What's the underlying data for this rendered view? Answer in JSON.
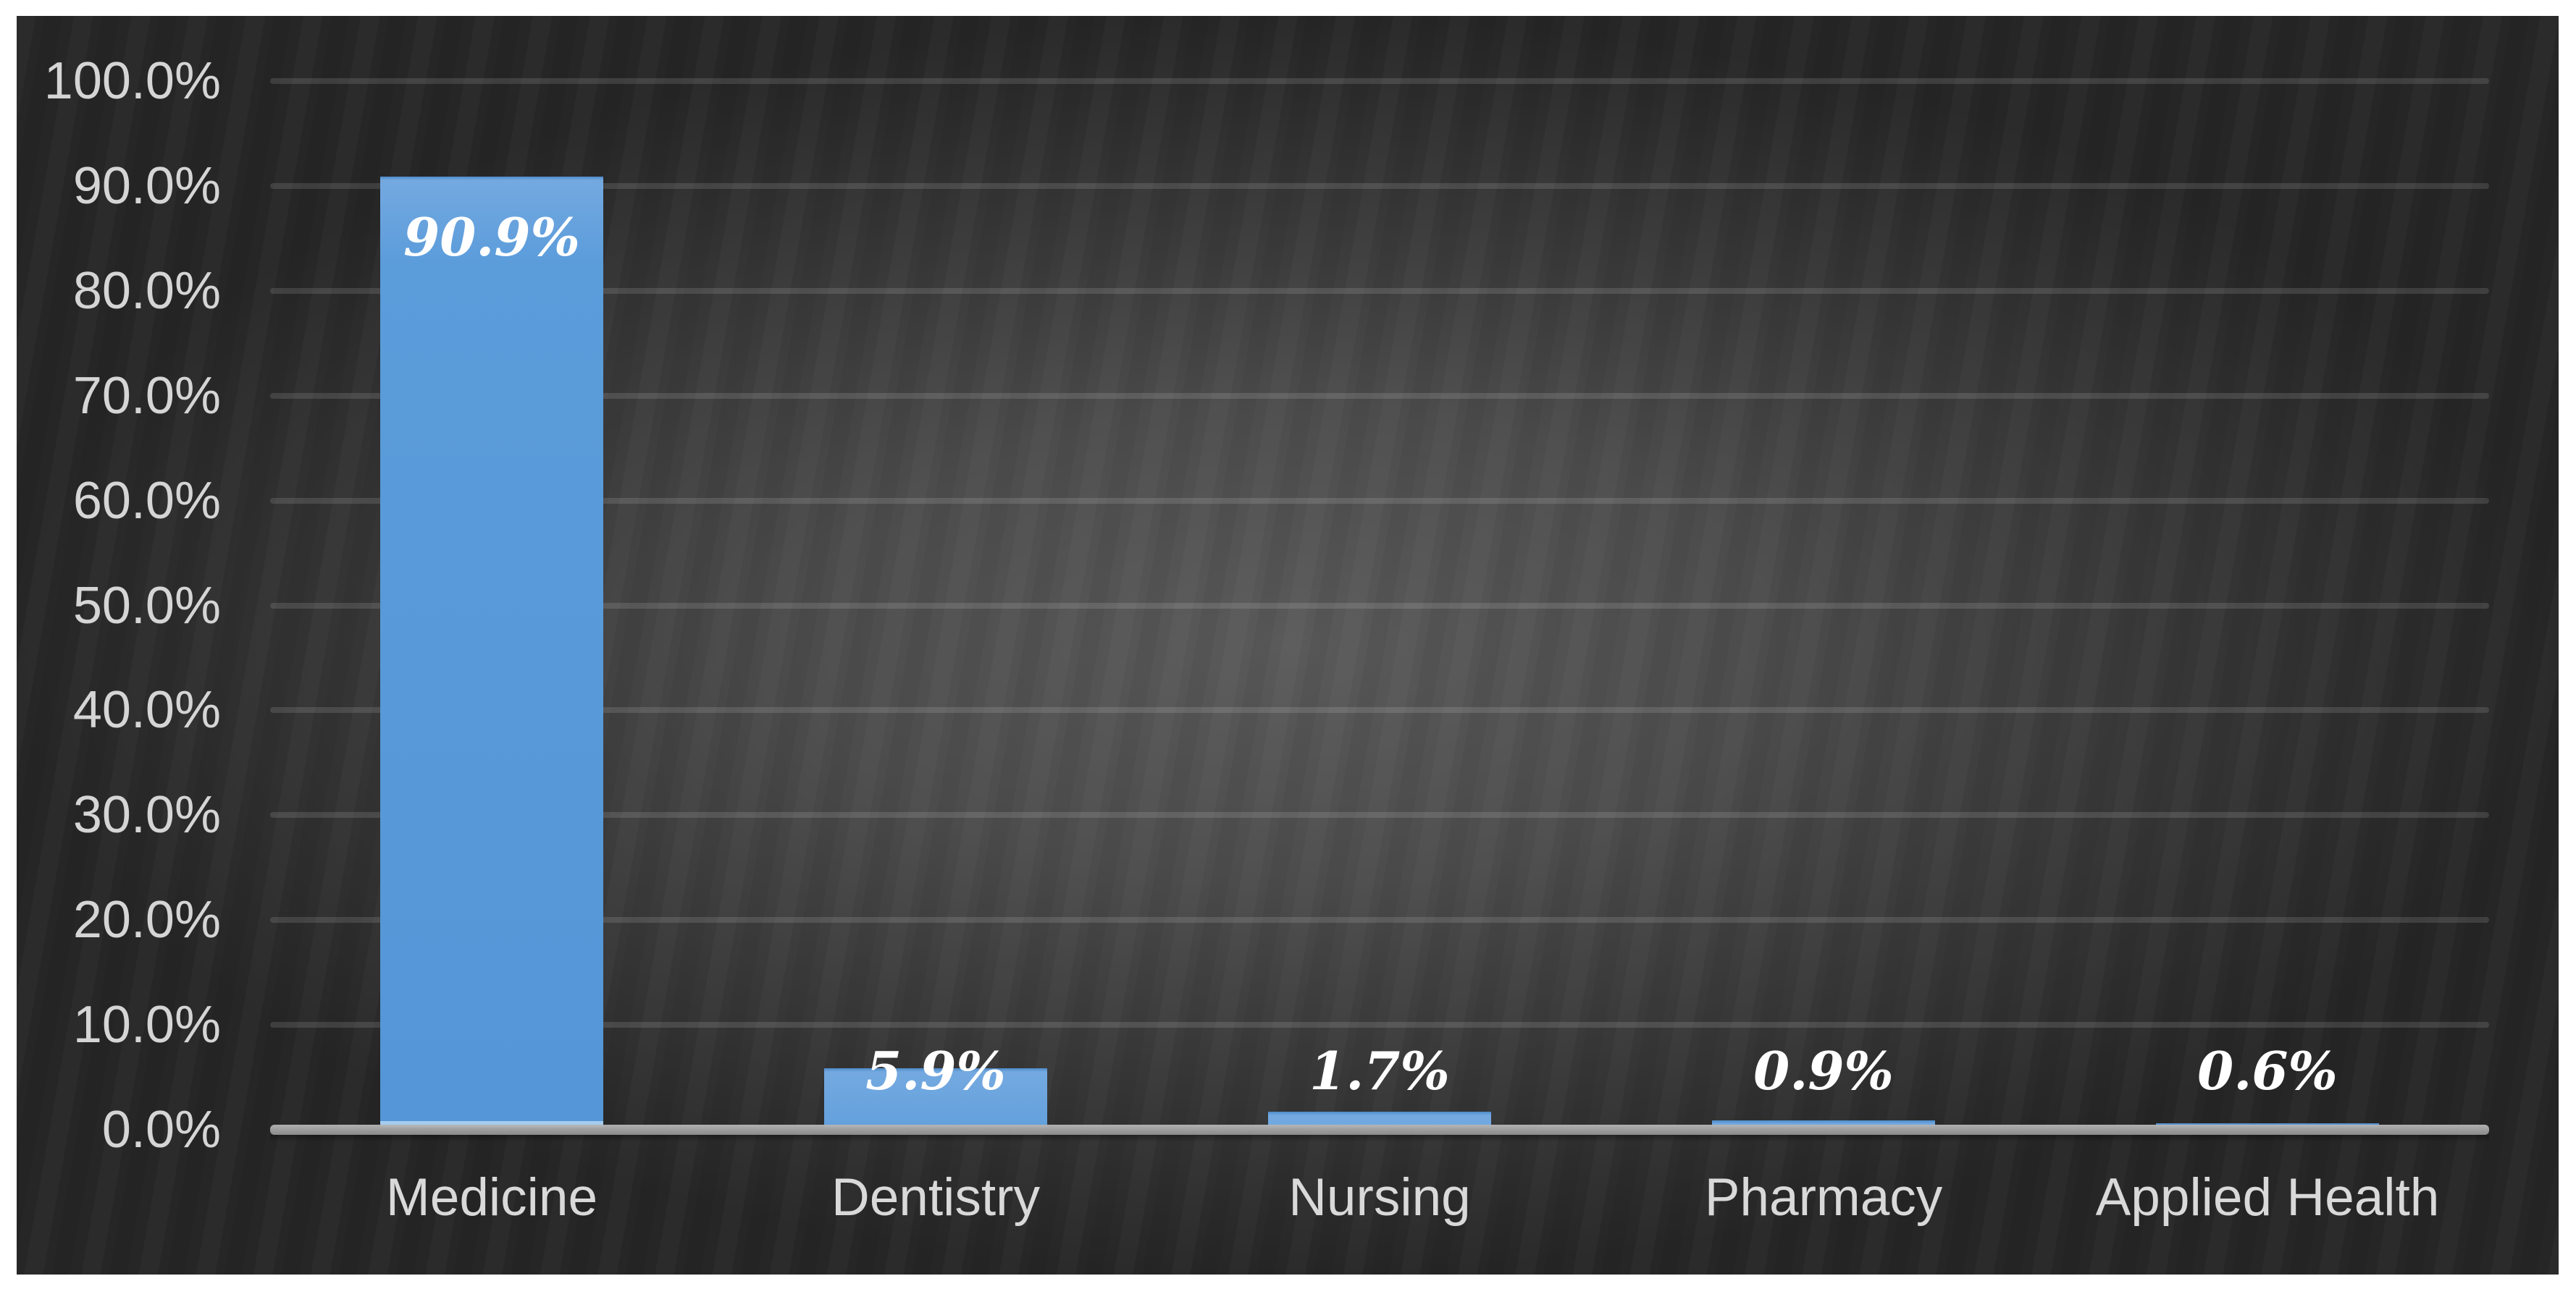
{
  "chart_data": {
    "type": "bar",
    "title": "",
    "xlabel": "",
    "ylabel": "",
    "categories": [
      "Medicine",
      "Dentistry",
      "Nursing",
      "Pharmacy",
      "Applied Health"
    ],
    "values": [
      90.9,
      5.9,
      1.7,
      0.9,
      0.6
    ],
    "value_labels": [
      "90.9%",
      "5.9%",
      "1.7%",
      "0.9%",
      "0.6%"
    ],
    "y_tick_labels": [
      "0.0%",
      "10.0%",
      "20.0%",
      "30.0%",
      "40.0%",
      "50.0%",
      "60.0%",
      "70.0%",
      "80.0%",
      "90.0%",
      "100.0%"
    ],
    "ylim": [
      0,
      100
    ],
    "y_tick_step": 10,
    "grid": "horizontal",
    "legend": "none",
    "bar_color": "#5B9CDB",
    "bar_color_top": "#74A9E0",
    "bar_color_edge": "#4E8BC9",
    "bar_glow_color": "#A5CCEF"
  },
  "colors": {
    "canvas_margin": "#FFFFFF",
    "panel_center": "#5A5A5A",
    "panel_edge": "#262626",
    "gridline": "rgba(255,255,255,0.12)",
    "axis_line_light": "#B6B6B6",
    "axis_line_dark": "#8E8E8E",
    "tick_label": "#D5D5D5",
    "category_label": "#D9D9D9",
    "data_label": "#FFFFFF"
  }
}
